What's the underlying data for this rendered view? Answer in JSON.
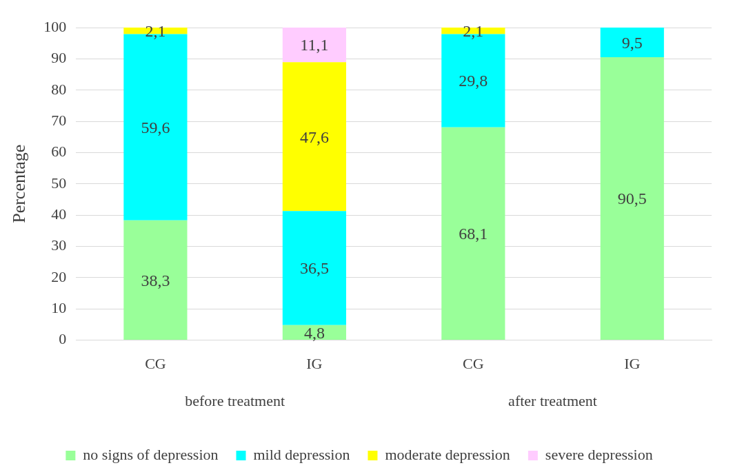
{
  "chart_data": {
    "type": "bar",
    "stacked": true,
    "ylabel": "Percentage",
    "categories": [
      "CG",
      "IG",
      "CG",
      "IG"
    ],
    "annotations": [
      "before treatment",
      "after treatment"
    ],
    "series": [
      {
        "name": "no signs of depression",
        "color": "#99ff99",
        "values": [
          38.3,
          4.8,
          68.1,
          90.5
        ],
        "value_labels": [
          "38,3",
          "4,8",
          "68,1",
          "90,5"
        ]
      },
      {
        "name": "mild depression",
        "color": "#00ffff",
        "values": [
          59.6,
          36.5,
          29.8,
          9.5
        ],
        "value_labels": [
          "59,6",
          "36,5",
          "29,8",
          "9,5"
        ]
      },
      {
        "name": "moderate depression",
        "color": "#ffff00",
        "values": [
          2.1,
          47.6,
          2.1,
          null
        ],
        "value_labels": [
          "2,1",
          "47,6",
          "2,1",
          null
        ]
      },
      {
        "name": "severe depression",
        "color": "#ffccff",
        "values": [
          null,
          11.1,
          null,
          null
        ],
        "value_labels": [
          null,
          "11,1",
          null,
          null
        ]
      }
    ],
    "ylim": [
      0,
      100
    ],
    "yticks": [
      0,
      10,
      20,
      30,
      40,
      50,
      60,
      70,
      80,
      90,
      100
    ],
    "grid": "y",
    "legend": "bottom"
  }
}
